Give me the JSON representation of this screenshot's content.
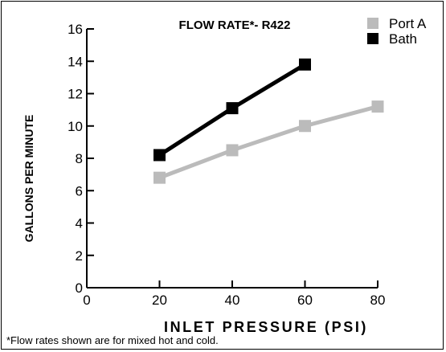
{
  "chart_data": {
    "type": "line",
    "title": "FLOW RATE*- R422",
    "xlabel": "INLET PRESSURE (PSI)",
    "ylabel": "GALLONS PER MINUTE",
    "xlim": [
      0,
      80
    ],
    "ylim": [
      0,
      16
    ],
    "x_ticks": [
      0,
      20,
      40,
      60,
      80
    ],
    "y_ticks": [
      0,
      2,
      4,
      6,
      8,
      10,
      12,
      14,
      16
    ],
    "grid": false,
    "legend_position": "top-right",
    "footnote": "*Flow rates shown are for mixed hot and cold.",
    "series": [
      {
        "name": "Port A",
        "color": "#bbbbbb",
        "x": [
          20,
          40,
          60,
          80
        ],
        "values": [
          6.8,
          8.5,
          10.0,
          11.2
        ]
      },
      {
        "name": "Bath",
        "color": "#000000",
        "x": [
          20,
          40,
          60
        ],
        "values": [
          8.2,
          11.1,
          13.8
        ]
      }
    ]
  }
}
